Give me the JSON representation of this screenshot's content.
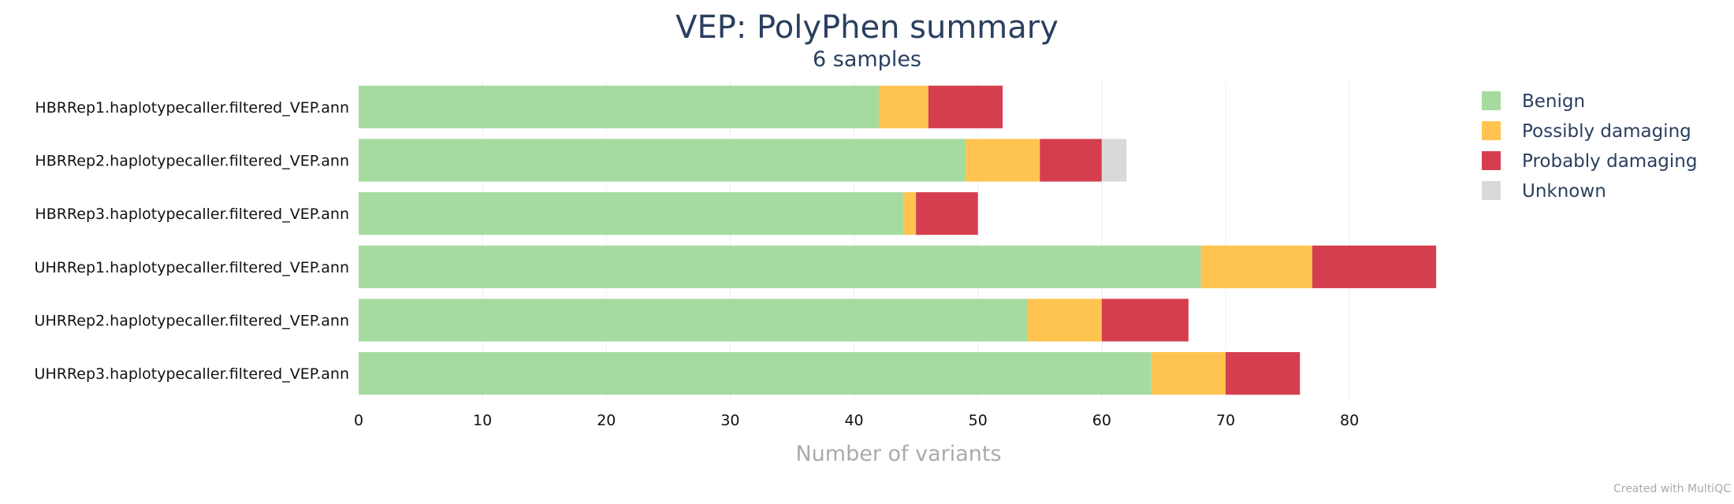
{
  "chart_data": {
    "type": "bar",
    "orientation": "horizontal",
    "stacked": true,
    "title": "VEP: PolyPhen summary",
    "subtitle": "6 samples",
    "xlabel": "Number of variants",
    "xlim": [
      0,
      87.5
    ],
    "xticks": [
      0,
      10,
      20,
      30,
      40,
      50,
      60,
      70,
      80
    ],
    "grid": true,
    "legend_position": "top-right",
    "categories": [
      "HBRRep1.haplotypecaller.filtered_VEP.ann",
      "HBRRep2.haplotypecaller.filtered_VEP.ann",
      "HBRRep3.haplotypecaller.filtered_VEP.ann",
      "UHRRep1.haplotypecaller.filtered_VEP.ann",
      "UHRRep2.haplotypecaller.filtered_VEP.ann",
      "UHRRep3.haplotypecaller.filtered_VEP.ann"
    ],
    "series": [
      {
        "name": "Benign",
        "color": "#a6dba0",
        "values": [
          42,
          49,
          44,
          68,
          54,
          64
        ]
      },
      {
        "name": "Possibly damaging",
        "color": "#fec44f",
        "values": [
          4,
          6,
          1,
          9,
          6,
          6
        ]
      },
      {
        "name": "Probably damaging",
        "color": "#d53e4f",
        "values": [
          6,
          5,
          5,
          10,
          7,
          6
        ]
      },
      {
        "name": "Unknown",
        "color": "#d9d9d9",
        "values": [
          0,
          2,
          0,
          0,
          0,
          0
        ]
      }
    ]
  },
  "credit": "Created with MultiQC"
}
